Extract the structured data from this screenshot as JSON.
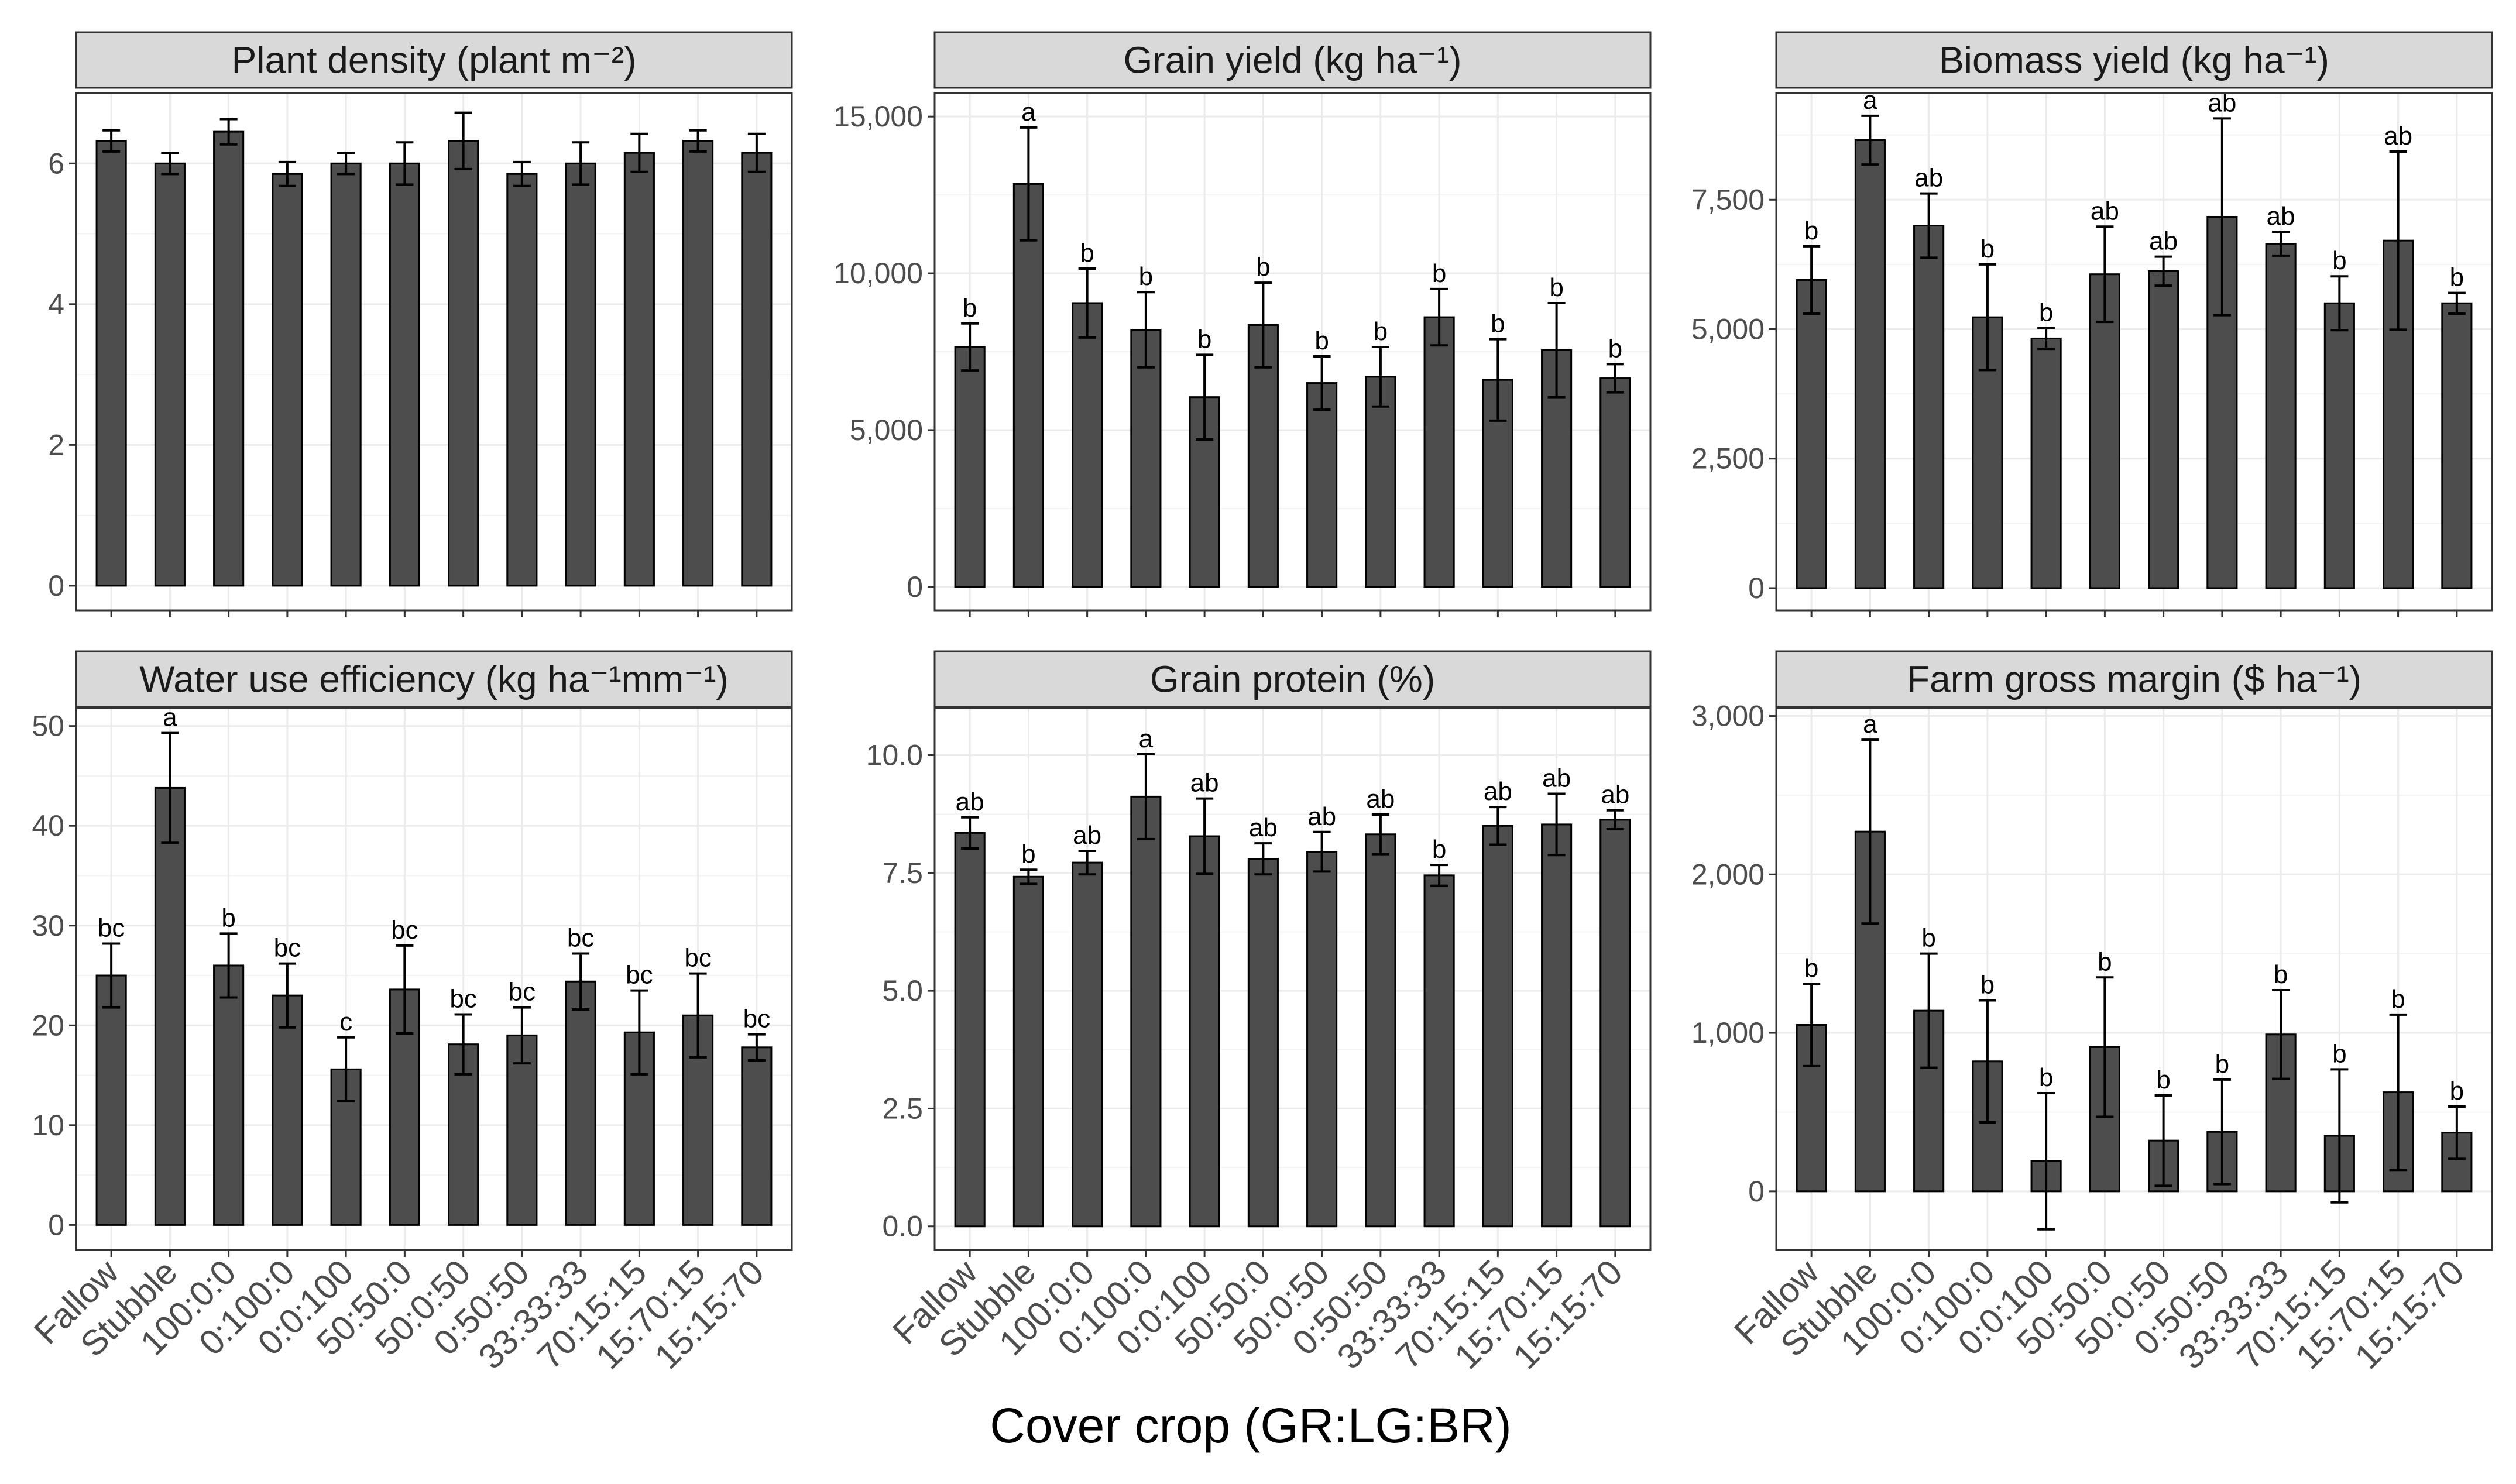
{
  "figure": {
    "x_axis_title": "Cover crop (GR:LG:BR)"
  },
  "chart_data": [
    {
      "type": "bar",
      "title": "Plant density (plant  m⁻²)",
      "categories": [
        "Fallow",
        "Stubble",
        "100:0:0",
        "0:100:0",
        "0:0:100",
        "50:50:0",
        "50:0:50",
        "0:50:50",
        "33:33:33",
        "70:15:15",
        "15:70:15",
        "15:15:70"
      ],
      "values": [
        6.32,
        6.0,
        6.45,
        5.85,
        6.0,
        6.0,
        6.32,
        5.85,
        6.0,
        6.15,
        6.32,
        6.15
      ],
      "errors": [
        0.15,
        0.15,
        0.18,
        0.17,
        0.15,
        0.3,
        0.4,
        0.17,
        0.3,
        0.27,
        0.15,
        0.27
      ],
      "letters": [
        "",
        "",
        "",
        "",
        "",
        "",
        "",
        "",
        "",
        "",
        "",
        ""
      ],
      "ylim": [
        -0.35,
        7.0
      ],
      "yticks": [
        0,
        2,
        4,
        6
      ],
      "ytick_labels": [
        "0",
        "2",
        "4",
        "6"
      ],
      "xlabel": "",
      "ylabel": ""
    },
    {
      "type": "bar",
      "title": "Grain yield (kg ha⁻¹)",
      "categories": [
        "Fallow",
        "Stubble",
        "100:0:0",
        "0:100:0",
        "0:0:100",
        "50:50:0",
        "50:0:50",
        "0:50:50",
        "33:33:33",
        "70:15:15",
        "15:70:15",
        "15:15:70"
      ],
      "values": [
        7650,
        12850,
        9050,
        8200,
        6050,
        8350,
        6500,
        6700,
        8600,
        6600,
        7550,
        6650
      ],
      "errors": [
        750,
        1800,
        1100,
        1200,
        1350,
        1350,
        850,
        950,
        900,
        1300,
        1500,
        450
      ],
      "letters": [
        "b",
        "a",
        "b",
        "b",
        "b",
        "b",
        "b",
        "b",
        "b",
        "b",
        "b",
        "b"
      ],
      "ylim": [
        -750,
        15750
      ],
      "yticks": [
        0,
        5000,
        10000,
        15000
      ],
      "ytick_labels": [
        "0",
        "5,000",
        "10,000",
        "15,000"
      ],
      "xlabel": "",
      "ylabel": ""
    },
    {
      "type": "bar",
      "title": "Biomass yield (kg ha⁻¹)",
      "categories": [
        "Fallow",
        "Stubble",
        "100:0:0",
        "0:100:0",
        "0:0:100",
        "50:50:0",
        "50:0:50",
        "0:50:50",
        "33:33:33",
        "70:15:15",
        "15:70:15",
        "15:15:70"
      ],
      "values": [
        5950,
        8650,
        7000,
        5230,
        4820,
        6060,
        6120,
        7170,
        6650,
        5500,
        6710,
        5500
      ],
      "errors": [
        650,
        470,
        620,
        1020,
        200,
        920,
        280,
        1900,
        230,
        520,
        1720,
        200
      ],
      "letters": [
        "b",
        "a",
        "ab",
        "b",
        "b",
        "ab",
        "ab",
        "ab",
        "ab",
        "b",
        "ab",
        "b"
      ],
      "ylim": [
        -430,
        9560
      ],
      "yticks": [
        0,
        2500,
        5000,
        7500
      ],
      "ytick_labels": [
        "0",
        "2,500",
        "5,000",
        "7,500"
      ],
      "xlabel": "",
      "ylabel": ""
    },
    {
      "type": "bar",
      "title": "Water use efficiency (kg ha⁻¹mm⁻¹)",
      "categories": [
        "Fallow",
        "Stubble",
        "100:0:0",
        "0:100:0",
        "0:0:100",
        "50:50:0",
        "50:0:50",
        "0:50:50",
        "33:33:33",
        "70:15:15",
        "15:70:15",
        "15:15:70"
      ],
      "values": [
        25.0,
        43.8,
        26.0,
        23.0,
        15.6,
        23.6,
        18.1,
        19.0,
        24.4,
        19.3,
        21.0,
        17.8
      ],
      "errors": [
        3.2,
        5.5,
        3.2,
        3.2,
        3.2,
        4.4,
        3.0,
        2.8,
        2.8,
        4.2,
        4.2,
        1.3
      ],
      "letters": [
        "bc",
        "a",
        "b",
        "bc",
        "c",
        "bc",
        "bc",
        "bc",
        "bc",
        "bc",
        "bc",
        "bc"
      ],
      "ylim": [
        -2.5,
        51.8
      ],
      "yticks": [
        0,
        10,
        20,
        30,
        40,
        50
      ],
      "ytick_labels": [
        "0",
        "10",
        "20",
        "30",
        "40",
        "50"
      ],
      "xlabel": "",
      "ylabel": ""
    },
    {
      "type": "bar",
      "title": "Grain protein (%)",
      "categories": [
        "Fallow",
        "Stubble",
        "100:0:0",
        "0:100:0",
        "0:0:100",
        "50:50:0",
        "50:0:50",
        "0:50:50",
        "33:33:33",
        "70:15:15",
        "15:70:15",
        "15:15:70"
      ],
      "values": [
        8.35,
        7.42,
        7.72,
        9.12,
        8.28,
        7.8,
        7.95,
        8.32,
        7.45,
        8.5,
        8.53,
        8.63
      ],
      "errors": [
        0.33,
        0.15,
        0.25,
        0.9,
        0.8,
        0.33,
        0.42,
        0.42,
        0.22,
        0.4,
        0.65,
        0.2
      ],
      "letters": [
        "ab",
        "b",
        "ab",
        "a",
        "ab",
        "ab",
        "ab",
        "ab",
        "b",
        "ab",
        "ab",
        "ab"
      ],
      "ylim": [
        -0.5,
        11.0
      ],
      "yticks": [
        0,
        2.5,
        5,
        7.5,
        10
      ],
      "ytick_labels": [
        "0.0",
        "2.5",
        "5.0",
        "7.5",
        "10.0"
      ],
      "xlabel": "",
      "ylabel": ""
    },
    {
      "type": "bar",
      "title": "Farm gross margin ($ ha⁻¹)",
      "categories": [
        "Fallow",
        "Stubble",
        "100:0:0",
        "0:100:0",
        "0:0:100",
        "50:50:0",
        "50:0:50",
        "0:50:50",
        "33:33:33",
        "70:15:15",
        "15:70:15",
        "15:15:70"
      ],
      "values": [
        1050,
        2270,
        1140,
        820,
        190,
        910,
        320,
        375,
        990,
        350,
        625,
        370
      ],
      "errors": [
        260,
        580,
        360,
        385,
        430,
        440,
        285,
        330,
        280,
        420,
        490,
        165
      ],
      "letters": [
        "b",
        "a",
        "b",
        "b",
        "b",
        "b",
        "b",
        "b",
        "b",
        "b",
        "b",
        "b"
      ],
      "ylim": [
        -370,
        3050
      ],
      "yticks": [
        0,
        1000,
        2000,
        3000
      ],
      "ytick_labels": [
        "0",
        "1,000",
        "2,000",
        "3,000"
      ],
      "xlabel": "",
      "ylabel": ""
    }
  ]
}
